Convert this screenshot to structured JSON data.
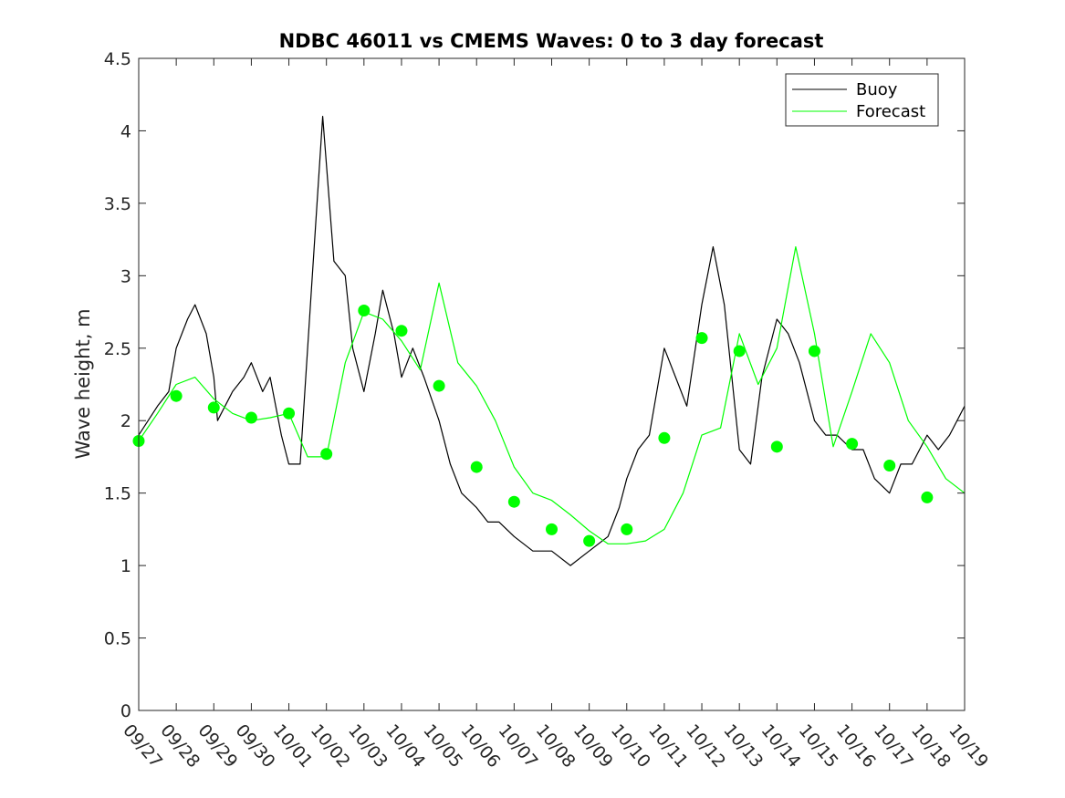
{
  "chart_data": {
    "type": "line",
    "title": "NDBC 46011 vs CMEMS Waves: 0 to 3 day forecast",
    "xlabel": "",
    "ylabel": "Wave height, m",
    "ylim": [
      0,
      4.5
    ],
    "yticks": [
      "0",
      "0.5",
      "1",
      "1.5",
      "2",
      "2.5",
      "3",
      "3.5",
      "4",
      "4.5"
    ],
    "xticks": [
      "09/27",
      "09/28",
      "09/29",
      "09/30",
      "10/01",
      "10/02",
      "10/03",
      "10/04",
      "10/05",
      "10/06",
      "10/07",
      "10/08",
      "10/09",
      "10/10",
      "10/11",
      "10/12",
      "10/13",
      "10/14",
      "10/15",
      "10/16",
      "10/17",
      "10/18",
      "10/19"
    ],
    "xlim_days": [
      0,
      22
    ],
    "grid": false,
    "legend_position": "top-right",
    "colors": {
      "buoy": "#000000",
      "forecast": "#00ff00",
      "axes": "#262626"
    },
    "series": [
      {
        "name": "Buoy",
        "x": [
          0,
          0.5,
          0.8,
          1,
          1.3,
          1.5,
          1.8,
          2,
          2.1,
          2.5,
          2.8,
          3,
          3.3,
          3.5,
          3.8,
          4,
          4.3,
          4.6,
          4.9,
          5.2,
          5.5,
          5.7,
          6,
          6.3,
          6.5,
          6.8,
          7,
          7.3,
          7.6,
          8,
          8.3,
          8.6,
          9,
          9.3,
          9.6,
          10,
          10.5,
          11,
          11.5,
          12,
          12.5,
          12.8,
          13,
          13.3,
          13.6,
          14,
          14.3,
          14.6,
          15,
          15.3,
          15.6,
          16,
          16.3,
          16.6,
          17,
          17.3,
          17.6,
          18,
          18.3,
          18.6,
          19,
          19.3,
          19.6,
          20,
          20.3,
          20.6,
          21,
          21.3,
          21.6,
          22
        ],
        "values": [
          1.9,
          2.1,
          2.2,
          2.5,
          2.7,
          2.8,
          2.6,
          2.3,
          2.0,
          2.2,
          2.3,
          2.4,
          2.2,
          2.3,
          1.9,
          1.7,
          1.7,
          2.9,
          4.1,
          3.1,
          3.0,
          2.5,
          2.2,
          2.6,
          2.9,
          2.6,
          2.3,
          2.5,
          2.3,
          2.0,
          1.7,
          1.5,
          1.4,
          1.3,
          1.3,
          1.2,
          1.1,
          1.1,
          1.0,
          1.1,
          1.2,
          1.4,
          1.6,
          1.8,
          1.9,
          2.5,
          2.3,
          2.1,
          2.8,
          3.2,
          2.8,
          1.8,
          1.7,
          2.3,
          2.7,
          2.6,
          2.4,
          2.0,
          1.9,
          1.9,
          1.8,
          1.8,
          1.6,
          1.5,
          1.7,
          1.7,
          1.9,
          1.8,
          1.9,
          2.1
        ]
      },
      {
        "name": "Forecast",
        "x": [
          0,
          0.5,
          1,
          1.5,
          2,
          2.5,
          3,
          3.5,
          4,
          4.5,
          5,
          5.5,
          6,
          6.5,
          7,
          7.5,
          8,
          8.5,
          9,
          9.5,
          10,
          10.5,
          11,
          11.5,
          12,
          12.5,
          13,
          13.5,
          14,
          14.5,
          15,
          15.5,
          16,
          16.5,
          17,
          17.5,
          18,
          18.5,
          19,
          19.5,
          20,
          20.5,
          21,
          21.5,
          22
        ],
        "values": [
          1.86,
          2.05,
          2.25,
          2.3,
          2.15,
          2.05,
          2.0,
          2.02,
          2.05,
          1.75,
          1.75,
          2.4,
          2.75,
          2.7,
          2.55,
          2.35,
          2.95,
          2.4,
          2.24,
          2.0,
          1.68,
          1.5,
          1.45,
          1.35,
          1.24,
          1.15,
          1.15,
          1.17,
          1.25,
          1.5,
          1.9,
          1.95,
          2.6,
          2.25,
          2.5,
          3.2,
          2.6,
          1.82,
          2.2,
          2.6,
          2.4,
          2.0,
          1.82,
          1.6,
          1.5
        ]
      }
    ],
    "forecast_markers": {
      "x": [
        0,
        1,
        2,
        3,
        4,
        5,
        6,
        7,
        8,
        9,
        10,
        11,
        12,
        13,
        14,
        15,
        16,
        17,
        18,
        19,
        20,
        21
      ],
      "values": [
        1.86,
        2.17,
        2.09,
        2.02,
        2.05,
        1.77,
        2.76,
        2.62,
        2.24,
        1.68,
        1.44,
        1.25,
        1.17,
        1.25,
        1.88,
        2.57,
        2.48,
        1.82,
        2.48,
        1.84,
        1.69,
        1.47
      ]
    }
  }
}
